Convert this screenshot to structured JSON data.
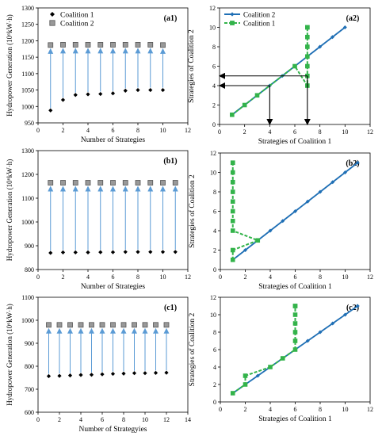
{
  "chart_data": [
    {
      "id": "a1",
      "panel_label": "(a1)",
      "type": "scatter",
      "xlabel": "Number of Strategies",
      "ylabel": "Hydropower Generation (10⁶kW·h)",
      "xlim": [
        0,
        12
      ],
      "ylim": [
        950,
        1300
      ],
      "xticks": [
        0,
        2,
        4,
        6,
        8,
        10,
        12
      ],
      "yticks": [
        950,
        1000,
        1050,
        1100,
        1150,
        1200,
        1250,
        1300
      ],
      "legend": "top-left",
      "series": [
        {
          "name": "Coalition 1",
          "marker": "diamond",
          "color": "#000000",
          "x": [
            1,
            2,
            3,
            4,
            5,
            6,
            7,
            8,
            9,
            10
          ],
          "y": [
            988,
            1020,
            1035,
            1037,
            1038,
            1040,
            1048,
            1050,
            1050,
            1050
          ]
        },
        {
          "name": "Coalition 2",
          "marker": "square",
          "color": "#999999",
          "x": [
            1,
            2,
            3,
            4,
            5,
            6,
            7,
            8,
            9,
            10
          ],
          "y": [
            1187,
            1188,
            1188,
            1188,
            1188,
            1188,
            1188,
            1188,
            1188,
            1187
          ]
        }
      ],
      "arrows": "coalition1-to-coalition2"
    },
    {
      "id": "a2",
      "panel_label": "(a2)",
      "type": "line",
      "xlabel": "Strategies of Coalition 1",
      "ylabel": "Strategies of Coalition 2",
      "xlim": [
        0,
        12
      ],
      "ylim": [
        0,
        12
      ],
      "xticks": [
        0,
        2,
        4,
        6,
        8,
        10,
        12
      ],
      "yticks": [
        0,
        2,
        4,
        6,
        8,
        10,
        12
      ],
      "legend": "top-left",
      "series": [
        {
          "name": "Coalition 2",
          "style": "solid",
          "marker": "diamond",
          "color": "#1f6fb5",
          "x": [
            1,
            2,
            3,
            4,
            5,
            6,
            7,
            8,
            9,
            10
          ],
          "y": [
            1,
            2,
            3,
            4,
            5,
            6,
            7,
            8,
            9,
            10
          ]
        },
        {
          "name": "Coalition 1",
          "style": "dashed",
          "marker": "square",
          "color": "#33b34a",
          "x": [
            1,
            2,
            3,
            6,
            7,
            7,
            7,
            7,
            7,
            7,
            7,
            7
          ],
          "y": [
            1,
            2,
            3,
            6,
            4,
            5,
            6,
            7,
            8,
            9,
            10,
            10
          ]
        }
      ],
      "annotations": [
        {
          "type": "arrow",
          "from": [
            7,
            5
          ],
          "to": [
            0,
            5
          ]
        },
        {
          "type": "arrow",
          "from": [
            4,
            4
          ],
          "to": [
            0,
            4
          ]
        },
        {
          "type": "arrow",
          "from": [
            4,
            4
          ],
          "to": [
            4,
            0
          ]
        },
        {
          "type": "arrow",
          "from": [
            7,
            5
          ],
          "to": [
            7,
            0
          ]
        }
      ]
    },
    {
      "id": "b1",
      "panel_label": "(b1)",
      "type": "scatter",
      "xlabel": "Number of Strategies",
      "ylabel": "Hydropower Generation (10⁶kW·h)",
      "xlim": [
        0,
        12
      ],
      "ylim": [
        800,
        1300
      ],
      "xticks": [
        0,
        2,
        4,
        6,
        8,
        10,
        12
      ],
      "yticks": [
        800,
        900,
        1000,
        1100,
        1200,
        1300
      ],
      "series": [
        {
          "name": "Coalition 1",
          "marker": "diamond",
          "color": "#000000",
          "x": [
            1,
            2,
            3,
            4,
            5,
            6,
            7,
            8,
            9,
            10,
            11
          ],
          "y": [
            870,
            872,
            872,
            872,
            873,
            873,
            874,
            874,
            874,
            874,
            874
          ]
        },
        {
          "name": "Coalition 2",
          "marker": "square",
          "color": "#999999",
          "x": [
            1,
            2,
            3,
            4,
            5,
            6,
            7,
            8,
            9,
            10,
            11
          ],
          "y": [
            1165,
            1165,
            1165,
            1165,
            1165,
            1165,
            1165,
            1165,
            1165,
            1165,
            1165
          ]
        }
      ],
      "arrows": "coalition1-to-coalition2"
    },
    {
      "id": "b2",
      "panel_label": "(b2)",
      "type": "line",
      "xlabel": "Strategies of Coalition 1",
      "ylabel": "Strategies of Coalition 2",
      "xlim": [
        0,
        12
      ],
      "ylim": [
        0,
        12
      ],
      "xticks": [
        0,
        2,
        4,
        6,
        8,
        10,
        12
      ],
      "yticks": [
        0,
        2,
        4,
        6,
        8,
        10,
        12
      ],
      "series": [
        {
          "name": "Coalition 2",
          "style": "solid",
          "marker": "diamond",
          "color": "#1f6fb5",
          "x": [
            1,
            2,
            3,
            4,
            5,
            6,
            7,
            8,
            9,
            10,
            11
          ],
          "y": [
            1,
            2,
            3,
            4,
            5,
            6,
            7,
            8,
            9,
            10,
            11
          ]
        },
        {
          "name": "Coalition 1",
          "style": "dashed",
          "marker": "square",
          "color": "#33b34a",
          "x": [
            1,
            1,
            3,
            1,
            1,
            1,
            1,
            1,
            1,
            1,
            1,
            1
          ],
          "y": [
            1,
            2,
            3,
            4,
            5,
            6,
            7,
            8,
            9,
            10,
            11,
            11
          ]
        }
      ]
    },
    {
      "id": "c1",
      "panel_label": "(c1)",
      "type": "scatter",
      "xlabel": "Number of Strategyies",
      "ylabel": "Hydropower Generation (10⁶kW·h)",
      "xlim": [
        0,
        14
      ],
      "ylim": [
        600,
        1100
      ],
      "xticks": [
        0,
        2,
        4,
        6,
        8,
        10,
        12,
        14
      ],
      "yticks": [
        600,
        700,
        800,
        900,
        1000,
        1100
      ],
      "series": [
        {
          "name": "Coalition 1",
          "marker": "diamond",
          "color": "#000000",
          "x": [
            1,
            2,
            3,
            4,
            5,
            6,
            7,
            8,
            9,
            10,
            11,
            12
          ],
          "y": [
            757,
            758,
            760,
            762,
            763,
            765,
            767,
            768,
            770,
            770,
            771,
            772
          ]
        },
        {
          "name": "Coalition 2",
          "marker": "square",
          "color": "#999999",
          "x": [
            1,
            2,
            3,
            4,
            5,
            6,
            7,
            8,
            9,
            10,
            11,
            12
          ],
          "y": [
            980,
            980,
            980,
            980,
            980,
            980,
            980,
            980,
            980,
            980,
            980,
            980
          ]
        }
      ],
      "arrows": "coalition1-to-coalition2"
    },
    {
      "id": "c2",
      "panel_label": "(c2)",
      "type": "line",
      "xlabel": "Strategies of Coalition 1",
      "ylabel": "Strategies of Coalition 2",
      "xlim": [
        0,
        12
      ],
      "ylim": [
        0,
        12
      ],
      "xticks": [
        0,
        2,
        4,
        6,
        8,
        10,
        12
      ],
      "yticks": [
        0,
        2,
        4,
        6,
        8,
        10,
        12
      ],
      "series": [
        {
          "name": "Coalition 2",
          "style": "solid",
          "marker": "diamond",
          "color": "#1f6fb5",
          "x": [
            1,
            2,
            3,
            4,
            5,
            6,
            7,
            8,
            9,
            10,
            11
          ],
          "y": [
            1,
            2,
            3,
            4,
            5,
            6,
            7,
            8,
            9,
            10,
            11
          ]
        },
        {
          "name": "Coalition 1",
          "style": "dashed",
          "marker": "square",
          "color": "#33b34a",
          "x": [
            1,
            2,
            2,
            4,
            5,
            6,
            6,
            6,
            6,
            6,
            6,
            6
          ],
          "y": [
            1,
            2,
            3,
            4,
            5,
            6,
            7,
            8,
            9,
            10,
            11,
            11
          ]
        }
      ]
    }
  ]
}
